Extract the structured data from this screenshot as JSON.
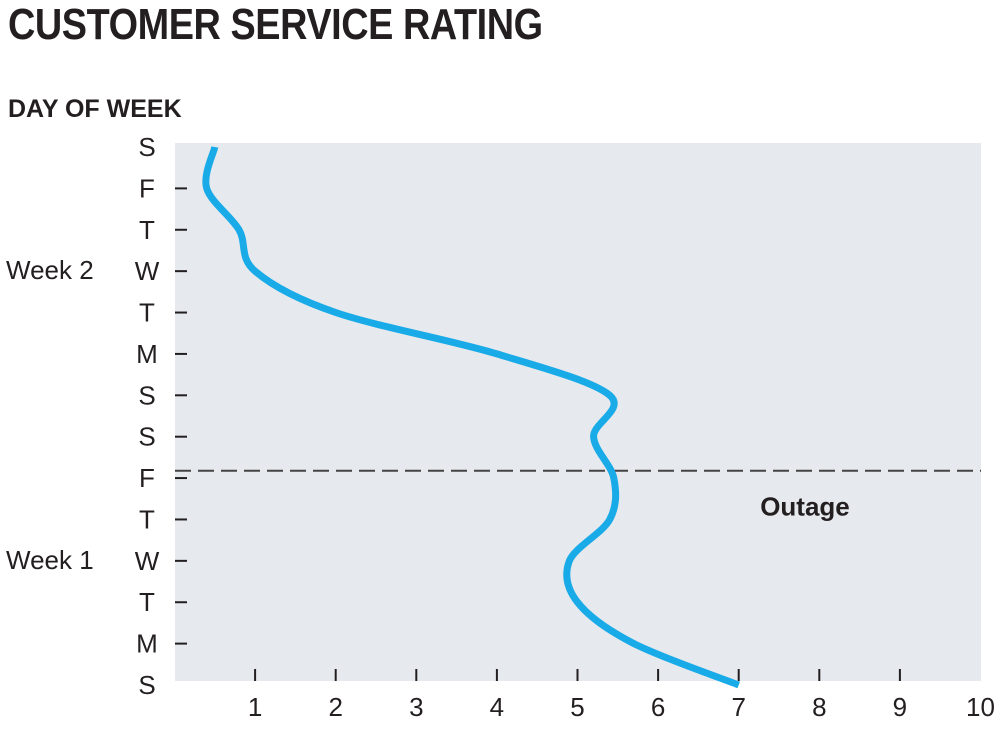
{
  "chart_data": {
    "type": "line",
    "title": "CUSTOMER SERVICE RATING",
    "ylabel": "DAY OF WEEK",
    "xlabel": "",
    "xlim": [
      0,
      10
    ],
    "x_ticks": [
      1,
      2,
      3,
      4,
      5,
      6,
      7,
      8,
      9,
      10
    ],
    "y_categories": [
      "S",
      "M",
      "T",
      "W",
      "T",
      "F",
      "S",
      "S",
      "M",
      "T",
      "W",
      "T",
      "F",
      "S"
    ],
    "groups": [
      {
        "label": "Week 1",
        "from_index": 0,
        "to_index": 6
      },
      {
        "label": "Week 2",
        "from_index": 7,
        "to_index": 13
      }
    ],
    "series": [
      {
        "color": "#19aae8",
        "points": [
          {
            "day_index": 0,
            "rating": 7.0
          },
          {
            "day_index": 1,
            "rating": 5.7
          },
          {
            "day_index": 2,
            "rating": 5.0
          },
          {
            "day_index": 3,
            "rating": 4.9
          },
          {
            "day_index": 4,
            "rating": 5.4
          },
          {
            "day_index": 5,
            "rating": 5.45
          },
          {
            "day_index": 6,
            "rating": 5.2
          },
          {
            "day_index": 7,
            "rating": 5.4
          },
          {
            "day_index": 8,
            "rating": 4.0
          },
          {
            "day_index": 9,
            "rating": 2.0
          },
          {
            "day_index": 10,
            "rating": 1.0
          },
          {
            "day_index": 11,
            "rating": 0.8
          },
          {
            "day_index": 12,
            "rating": 0.4
          },
          {
            "day_index": 13,
            "rating": 0.5
          }
        ]
      }
    ],
    "annotations": [
      {
        "label": "Outage",
        "day_position": 5.25,
        "style": "dashed"
      }
    ],
    "grid": false,
    "plot_background": "#e6e9ed",
    "line_color": "#19aae8"
  }
}
